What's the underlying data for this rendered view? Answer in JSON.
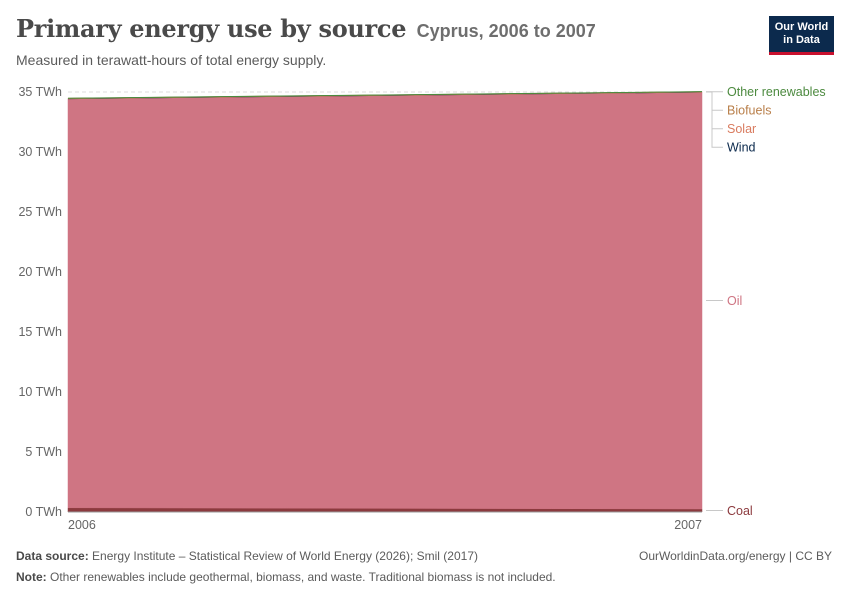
{
  "header": {
    "title": "Primary energy use by source",
    "title_suffix": "Cyprus, 2006 to 2007",
    "subtitle": "Measured in terawatt-hours of total energy supply."
  },
  "logo": {
    "line1": "Our World",
    "line2": "in Data"
  },
  "chart_data": {
    "type": "area",
    "stacked": true,
    "x": [
      "2006",
      "2007"
    ],
    "ylim": [
      0,
      35
    ],
    "yticks": [
      "0 TWh",
      "5 TWh",
      "10 TWh",
      "15 TWh",
      "20 TWh",
      "25 TWh",
      "30 TWh",
      "35 TWh"
    ],
    "ytick_values": [
      0,
      5,
      10,
      15,
      20,
      25,
      30,
      35
    ],
    "grid": true,
    "legend_placement": "right",
    "series": [
      {
        "name": "Coal",
        "color": "#8c3a3e",
        "values": [
          0.35,
          0.25
        ]
      },
      {
        "name": "Oil",
        "color": "#cf7583",
        "values": [
          34.1,
          34.75
        ]
      },
      {
        "name": "Wind",
        "color": "#0c2a4d",
        "values": [
          0,
          0
        ]
      },
      {
        "name": "Solar",
        "color": "#d97b5f",
        "values": [
          0.01,
          0.01
        ]
      },
      {
        "name": "Biofuels",
        "color": "#b97f4a",
        "values": [
          0.01,
          0.01
        ]
      },
      {
        "name": "Other renewables",
        "color": "#4c8a3f",
        "values": [
          0.01,
          0.01
        ]
      }
    ]
  },
  "footer": {
    "source_label": "Data source:",
    "source_text": "Energy Institute – Statistical Review of World Energy (2026); Smil (2017)",
    "note_label": "Note:",
    "note_text": "Other renewables include geothermal, biomass, and waste. Traditional biomass is not included.",
    "attribution": "OurWorldinData.org/energy | CC BY"
  }
}
